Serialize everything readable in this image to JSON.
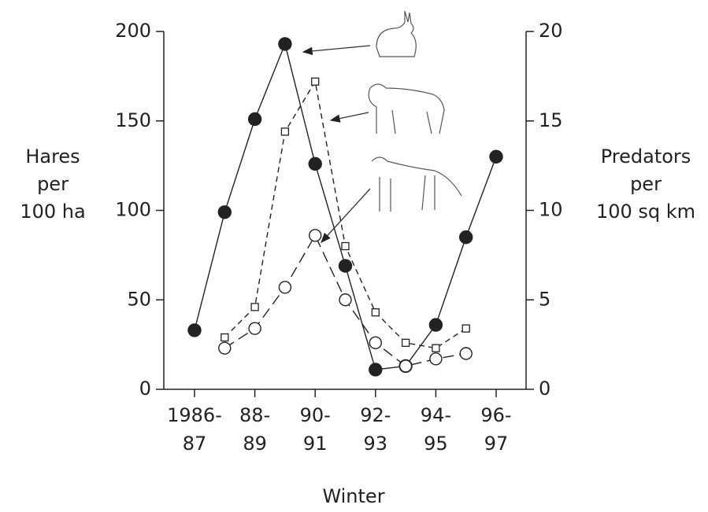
{
  "chart_data": {
    "type": "line",
    "categories": [
      "1986-\n87",
      null,
      "88-\n89",
      null,
      "90-\n91",
      null,
      "92-\n93",
      null,
      "94-\n95",
      null,
      "96-\n97"
    ],
    "x_label": "Winter",
    "y_label": [
      "Hares",
      "per",
      "100 ha"
    ],
    "y2_label": [
      "Predators",
      "per",
      "100 sq km"
    ],
    "ylim": [
      0,
      200
    ],
    "yticks": [
      0,
      50,
      100,
      150,
      200
    ],
    "y2lim": [
      0,
      20
    ],
    "y2ticks": [
      0,
      5,
      10,
      15,
      20
    ],
    "series": [
      {
        "color": "#222222",
        "marker": "filled-circle",
        "dash": "solid",
        "values": [
          33,
          99,
          151,
          193,
          126,
          69,
          11,
          13,
          36,
          85,
          130
        ]
      },
      {
        "color": "#222222",
        "marker": "square",
        "dash": "short",
        "axis": "y2",
        "values": [
          null,
          2.9,
          4.6,
          14.4,
          17.2,
          8.0,
          4.3,
          2.6,
          2.3,
          3.4,
          null
        ]
      },
      {
        "color": "#222222",
        "marker": "open-circle",
        "dash": "long",
        "axis": "y2",
        "values": [
          null,
          2.3,
          3.4,
          5.7,
          8.6,
          5.0,
          2.6,
          1.3,
          1.7,
          2.0,
          null
        ]
      }
    ]
  }
}
